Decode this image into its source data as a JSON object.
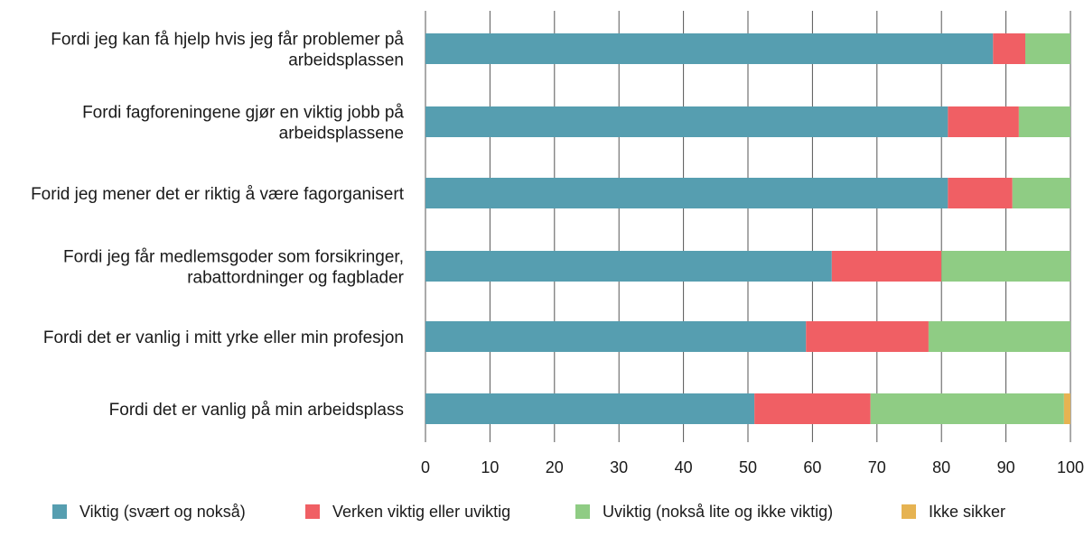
{
  "chart_data": {
    "type": "bar",
    "orientation": "horizontal",
    "stacked": true,
    "title": "",
    "xlabel": "",
    "ylabel": "",
    "xlim": [
      0,
      100
    ],
    "xticks": [
      "0",
      "10",
      "20",
      "30",
      "40",
      "50",
      "60",
      "70",
      "80",
      "90",
      "100"
    ],
    "grid": "vertical",
    "legend_position": "bottom",
    "categories": [
      [
        "Fordi jeg kan få hjelp hvis jeg får problemer på",
        "arbeidsplassen"
      ],
      [
        "Fordi fagforeningene gjør en viktig jobb på",
        "arbeidsplassene"
      ],
      [
        "Forid jeg mener det er riktig å være fagorganisert"
      ],
      [
        "Fordi jeg får medlemsgoder som forsikringer,",
        "rabattordninger og fagblader"
      ],
      [
        "Fordi det er vanlig i mitt yrke eller min profesjon"
      ],
      [
        "Fordi det er vanlig på min arbeidsplass"
      ]
    ],
    "series": [
      {
        "name": "Viktig (svært og nokså)",
        "color": "#569eb0",
        "values": [
          88,
          81,
          81,
          63,
          59,
          51
        ]
      },
      {
        "name": "Verken viktig eller uviktig",
        "color": "#f05f64",
        "values": [
          5,
          11,
          10,
          17,
          19,
          18
        ]
      },
      {
        "name": "Uviktig (nokså lite og ikke viktig)",
        "color": "#8fcc84",
        "values": [
          7,
          8,
          9,
          20,
          22,
          30
        ]
      },
      {
        "name": "Ikke sikker",
        "color": "#e6b352",
        "values": [
          0,
          0,
          0,
          0,
          0,
          1
        ]
      }
    ]
  }
}
